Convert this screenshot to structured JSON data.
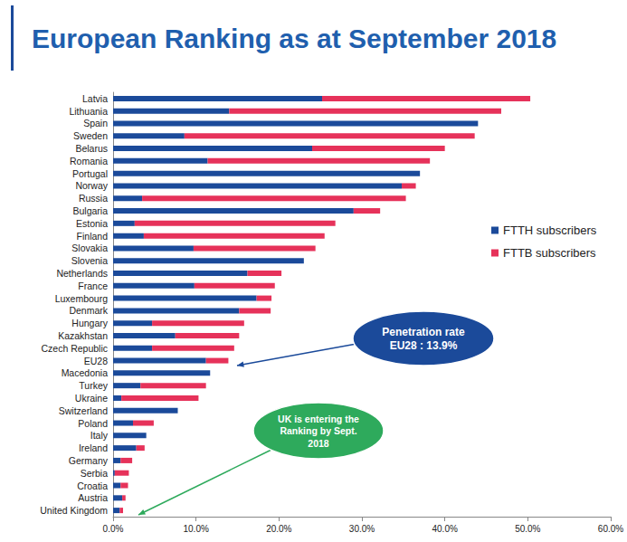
{
  "chart_data": {
    "type": "bar",
    "title": "European Ranking as at September 2018",
    "orientation": "horizontal",
    "stacked": true,
    "grid": false,
    "legend": "right",
    "categories": [
      "Latvia",
      "Lithuania",
      "Spain",
      "Sweden",
      "Belarus",
      "Romania",
      "Portugal",
      "Norway",
      "Russia",
      "Bulgaria",
      "Estonia",
      "Finland",
      "Slovakia",
      "Slovenia",
      "Netherlands",
      "France",
      "Luxembourg",
      "Denmark",
      "Hungary",
      "Kazakhstan",
      "Czech Republic",
      "EU28",
      "Macedonia",
      "Turkey",
      "Ukraine",
      "Switzerland",
      "Poland",
      "Italy",
      "Ireland",
      "Germany",
      "Serbia",
      "Croatia",
      "Austria",
      "United Kingdom"
    ],
    "series": [
      {
        "name": "FTTH subscribers",
        "color": "#1b4a9a",
        "values": [
          25.2,
          14.0,
          44.0,
          8.6,
          24.0,
          11.4,
          37.0,
          34.8,
          3.5,
          29.0,
          2.6,
          3.7,
          9.7,
          23.0,
          16.2,
          9.8,
          17.3,
          15.2,
          4.7,
          7.5,
          4.7,
          11.2,
          11.7,
          3.3,
          1.0,
          7.8,
          2.4,
          4.0,
          2.8,
          0.9,
          0.2,
          0.9,
          1.1,
          0.8
        ]
      },
      {
        "name": "FTTB subscribers",
        "color": "#e6325a",
        "values": [
          25.1,
          32.8,
          0,
          35.0,
          16.0,
          26.8,
          0,
          1.7,
          31.8,
          3.2,
          24.2,
          21.8,
          14.7,
          0,
          4.1,
          9.7,
          1.8,
          3.8,
          11.1,
          7.7,
          9.9,
          2.7,
          0,
          7.9,
          9.3,
          0,
          2.5,
          0,
          1.0,
          1.4,
          1.7,
          0.9,
          0.4,
          0.4
        ]
      }
    ],
    "xlim": [
      0,
      60
    ],
    "xticks": [
      {
        "value": 0,
        "label": "0.0%"
      },
      {
        "value": 10,
        "label": "10.0%"
      },
      {
        "value": 20,
        "label": "20.0%"
      },
      {
        "value": 30,
        "label": "30.0%"
      },
      {
        "value": 40,
        "label": "40.0%"
      },
      {
        "value": 50,
        "label": "50.0%"
      },
      {
        "value": 60,
        "label": "60.0%"
      }
    ],
    "annotations": [
      {
        "text": "Penetration rate\nEU28 : 13.9%",
        "color": "#1b4a9a"
      },
      {
        "text": "UK is entering the\nRanking by Sept.\n2018",
        "color": "#2eaa5c"
      }
    ]
  }
}
